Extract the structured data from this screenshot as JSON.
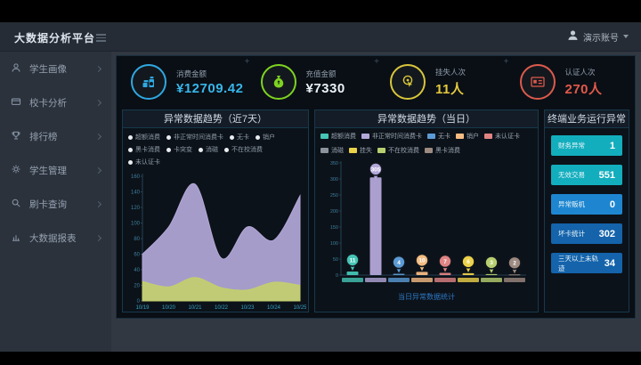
{
  "app": {
    "title": "大数据分析平台",
    "header": {
      "user_name": "演示账号"
    }
  },
  "sidebar": {
    "items": [
      {
        "label": "学生画像"
      },
      {
        "label": "校卡分析"
      },
      {
        "label": "排行榜"
      },
      {
        "label": "学生管理"
      },
      {
        "label": "刷卡查询"
      },
      {
        "label": "大数据报表"
      }
    ]
  },
  "kpis": [
    {
      "label": "消费金额",
      "value": "¥12709.42",
      "value_color": "#38b6ea",
      "accent": "#2fa8e0"
    },
    {
      "label": "充值金额",
      "value": "¥7330",
      "value_color": "#e9f2f6",
      "accent": "#7ed321"
    },
    {
      "label": "挂失人次",
      "value": "11人",
      "value_color": "#e5c93f",
      "accent": "#d8c53a"
    },
    {
      "label": "认证人次",
      "value": "270人",
      "value_color": "#e2594b",
      "accent": "#dd5a4c"
    }
  ],
  "chart_data": [
    {
      "type": "area",
      "title": "异常数据趋势（近7天）",
      "categories": [
        "10/19",
        "10/20",
        "10/21",
        "10/22",
        "10/23",
        "10/24",
        "10/25"
      ],
      "series": [
        {
          "name": "非正常时间消费卡",
          "color": "#b3a8d9",
          "values": [
            60,
            95,
            150,
            55,
            95,
            78,
            135
          ]
        },
        {
          "name": "不在校消费",
          "color": "#c3cf6e",
          "values": [
            25,
            18,
            30,
            17,
            14,
            24,
            20
          ]
        }
      ],
      "legend": [
        "超额消费",
        "非正常时间消费卡",
        "无卡",
        "销户",
        "黑卡消费",
        "卡突变",
        "消磁",
        "不在校消费",
        "未认证卡"
      ],
      "ylim": [
        0,
        160
      ],
      "yticks": [
        0,
        20,
        40,
        60,
        80,
        100,
        120,
        140,
        160
      ],
      "grid": false,
      "legend_position": "top"
    },
    {
      "type": "bar",
      "title": "异常数据趋势（当日）",
      "legend": [
        {
          "name": "超额消费",
          "color": "#45c5b5"
        },
        {
          "name": "非正常时间消费卡",
          "color": "#b3a8d9"
        },
        {
          "name": "无卡",
          "color": "#5b9bd5"
        },
        {
          "name": "销户",
          "color": "#f5bc83"
        },
        {
          "name": "未认证卡",
          "color": "#e08484"
        },
        {
          "name": "消磁",
          "color": "#8d939c"
        },
        {
          "name": "挂失",
          "color": "#ecd24a"
        },
        {
          "name": "不在校消费",
          "color": "#b8cf70"
        },
        {
          "name": "黑卡消费",
          "color": "#9d8a80"
        }
      ],
      "bars": [
        {
          "name": "超额消费",
          "value": 11,
          "color": "#45c5b5"
        },
        {
          "name": "非正常时间消费卡",
          "value": 305,
          "color": "#b3a8d9"
        },
        {
          "name": "无卡",
          "value": 4,
          "color": "#5b9bd5"
        },
        {
          "name": "销户",
          "value": 10,
          "color": "#f5bc83"
        },
        {
          "name": "未认证卡",
          "value": 7,
          "color": "#e08484"
        },
        {
          "name": "挂失",
          "value": 6,
          "color": "#ecd24a"
        },
        {
          "name": "不在校消费",
          "value": 3,
          "color": "#b8cf70"
        },
        {
          "name": "黑卡消费",
          "value": 2,
          "color": "#9d8a80"
        }
      ],
      "ylim": [
        0,
        350
      ],
      "yticks": [
        0,
        50,
        100,
        150,
        200,
        250,
        300,
        350
      ],
      "footer_link": "当日异常数据统计"
    }
  ],
  "stats_panel": {
    "title": "终端业务运行异常",
    "rows": [
      {
        "label": "财务异常",
        "value": "1",
        "color": "#13aebe"
      },
      {
        "label": "无效交易",
        "value": "551",
        "color": "#13aebe"
      },
      {
        "label": "异常贩机",
        "value": "0",
        "color": "#1e86d0"
      },
      {
        "label": "坏卡统计",
        "value": "302",
        "color": "#1463ab"
      },
      {
        "label": "三天以上未轨迹",
        "value": "34",
        "color": "#1463ab"
      }
    ]
  }
}
